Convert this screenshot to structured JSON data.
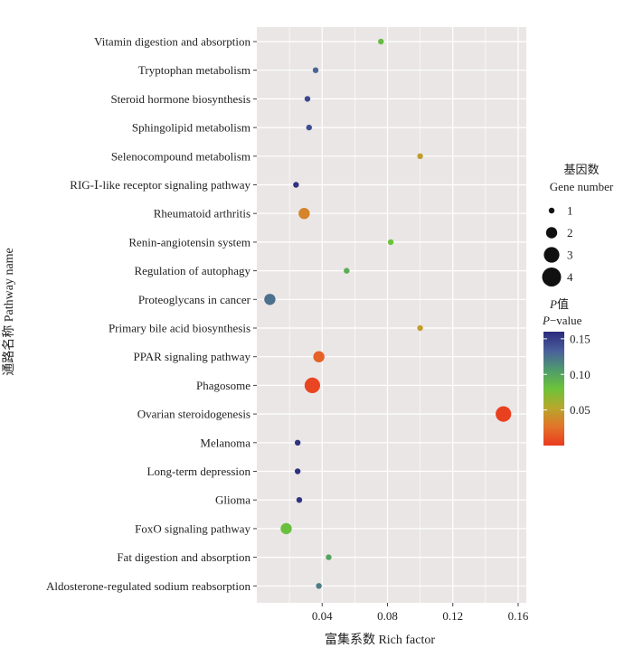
{
  "chart_data": {
    "type": "scatter",
    "title": "",
    "xlabel": "富集系数 Rich factor",
    "ylabel": "通路名称 Pathway name",
    "xlim": [
      0.0,
      0.165
    ],
    "xticks": [
      0.04,
      0.08,
      0.12,
      0.16
    ],
    "xtick_labels": [
      "0.04",
      "0.08",
      "0.12",
      "0.16"
    ],
    "points": [
      {
        "pathway": "Vitamin digestion and absorption",
        "rich_factor": 0.076,
        "gene_number": 1,
        "p_value": 0.085
      },
      {
        "pathway": "Tryptophan metabolism",
        "rich_factor": 0.036,
        "gene_number": 1,
        "p_value": 0.13
      },
      {
        "pathway": "Steroid hormone biosynthesis",
        "rich_factor": 0.031,
        "gene_number": 1,
        "p_value": 0.145
      },
      {
        "pathway": "Sphingolipid metabolism",
        "rich_factor": 0.032,
        "gene_number": 1,
        "p_value": 0.142
      },
      {
        "pathway": "Selenocompound metabolism",
        "rich_factor": 0.1,
        "gene_number": 1,
        "p_value": 0.048
      },
      {
        "pathway": "RIG-Ⅰ-like receptor signaling pathway",
        "rich_factor": 0.024,
        "gene_number": 1,
        "p_value": 0.155
      },
      {
        "pathway": "Rheumatoid arthritis",
        "rich_factor": 0.029,
        "gene_number": 2,
        "p_value": 0.035
      },
      {
        "pathway": "Renin-angiotensin system",
        "rich_factor": 0.082,
        "gene_number": 1,
        "p_value": 0.08
      },
      {
        "pathway": "Regulation of autophagy",
        "rich_factor": 0.055,
        "gene_number": 1,
        "p_value": 0.095
      },
      {
        "pathway": "Proteoglycans in cancer",
        "rich_factor": 0.008,
        "gene_number": 2,
        "p_value": 0.125
      },
      {
        "pathway": "Primary bile acid biosynthesis",
        "rich_factor": 0.1,
        "gene_number": 1,
        "p_value": 0.048
      },
      {
        "pathway": "PPAR signaling pathway",
        "rich_factor": 0.038,
        "gene_number": 2,
        "p_value": 0.018
      },
      {
        "pathway": "Phagosome",
        "rich_factor": 0.034,
        "gene_number": 3,
        "p_value": 0.005
      },
      {
        "pathway": "Ovarian steroidogenesis",
        "rich_factor": 0.151,
        "gene_number": 3,
        "p_value": 0.003
      },
      {
        "pathway": "Melanoma",
        "rich_factor": 0.025,
        "gene_number": 1,
        "p_value": 0.156
      },
      {
        "pathway": "Long-term depression",
        "rich_factor": 0.025,
        "gene_number": 1,
        "p_value": 0.156
      },
      {
        "pathway": "Glioma",
        "rich_factor": 0.026,
        "gene_number": 1,
        "p_value": 0.155
      },
      {
        "pathway": "FoxO signaling pathway",
        "rich_factor": 0.018,
        "gene_number": 2,
        "p_value": 0.082
      },
      {
        "pathway": "Fat digestion and absorption",
        "rich_factor": 0.044,
        "gene_number": 1,
        "p_value": 0.1
      },
      {
        "pathway": "Aldosterone-regulated sodium reabsorption",
        "rich_factor": 0.038,
        "gene_number": 1,
        "p_value": 0.12
      }
    ],
    "legend_size": {
      "title_cn": "基因数",
      "title_en": "Gene number",
      "values": [
        1,
        2,
        3,
        4
      ]
    },
    "legend_color": {
      "title_line1_italic": "P",
      "title_line1_suffix": "值",
      "title_line2_italic": "P",
      "title_line2_suffix": "−value",
      "ticks": [
        0.15,
        0.1,
        0.05
      ],
      "tick_labels": [
        "0.15",
        "0.10",
        "0.05"
      ],
      "range": [
        0.0,
        0.16
      ],
      "gradient": [
        "#ea3a1f",
        "#e2742a",
        "#b7a82c",
        "#6cc33a",
        "#4f9a6d",
        "#4a5f9c",
        "#2a2a7a"
      ]
    },
    "panel_color": "#ebe6e6",
    "grid_color": "#ffffff"
  }
}
